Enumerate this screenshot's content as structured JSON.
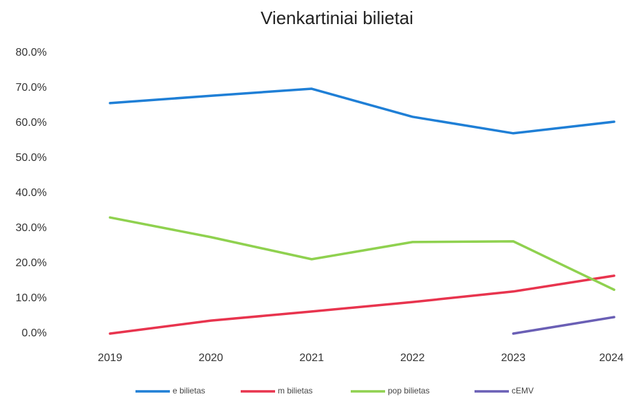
{
  "chart_data": {
    "type": "line",
    "title": "Vienkartiniai bilietai",
    "categories": [
      "2019",
      "2020",
      "2021",
      "2022",
      "2023",
      "2024"
    ],
    "series": [
      {
        "name": "e bilietas",
        "color": "#1f7fd6",
        "values": [
          65.7,
          67.8,
          69.8,
          61.8,
          57.1,
          60.4
        ]
      },
      {
        "name": "m bilietas",
        "color": "#e8344e",
        "values": [
          0.0,
          3.7,
          6.3,
          9.0,
          12.0,
          16.5
        ]
      },
      {
        "name": "pop bilietas",
        "color": "#8fd14f",
        "values": [
          33.1,
          27.5,
          21.2,
          26.1,
          26.3,
          12.5
        ]
      },
      {
        "name": "cEMV",
        "color": "#6a5fb5",
        "values": [
          null,
          null,
          null,
          null,
          0.0,
          4.7
        ]
      }
    ],
    "ylim": [
      0,
      80
    ],
    "yticks": [
      {
        "value": 0,
        "label": "0.0%"
      },
      {
        "value": 10,
        "label": "10.0%"
      },
      {
        "value": 20,
        "label": "20.0%"
      },
      {
        "value": 30,
        "label": "30.0%"
      },
      {
        "value": 40,
        "label": "40.0%"
      },
      {
        "value": 50,
        "label": "50.0%"
      },
      {
        "value": 60,
        "label": "60.0%"
      },
      {
        "value": 70,
        "label": "70.0%"
      },
      {
        "value": 80,
        "label": "80.0%"
      }
    ],
    "grid": false
  }
}
